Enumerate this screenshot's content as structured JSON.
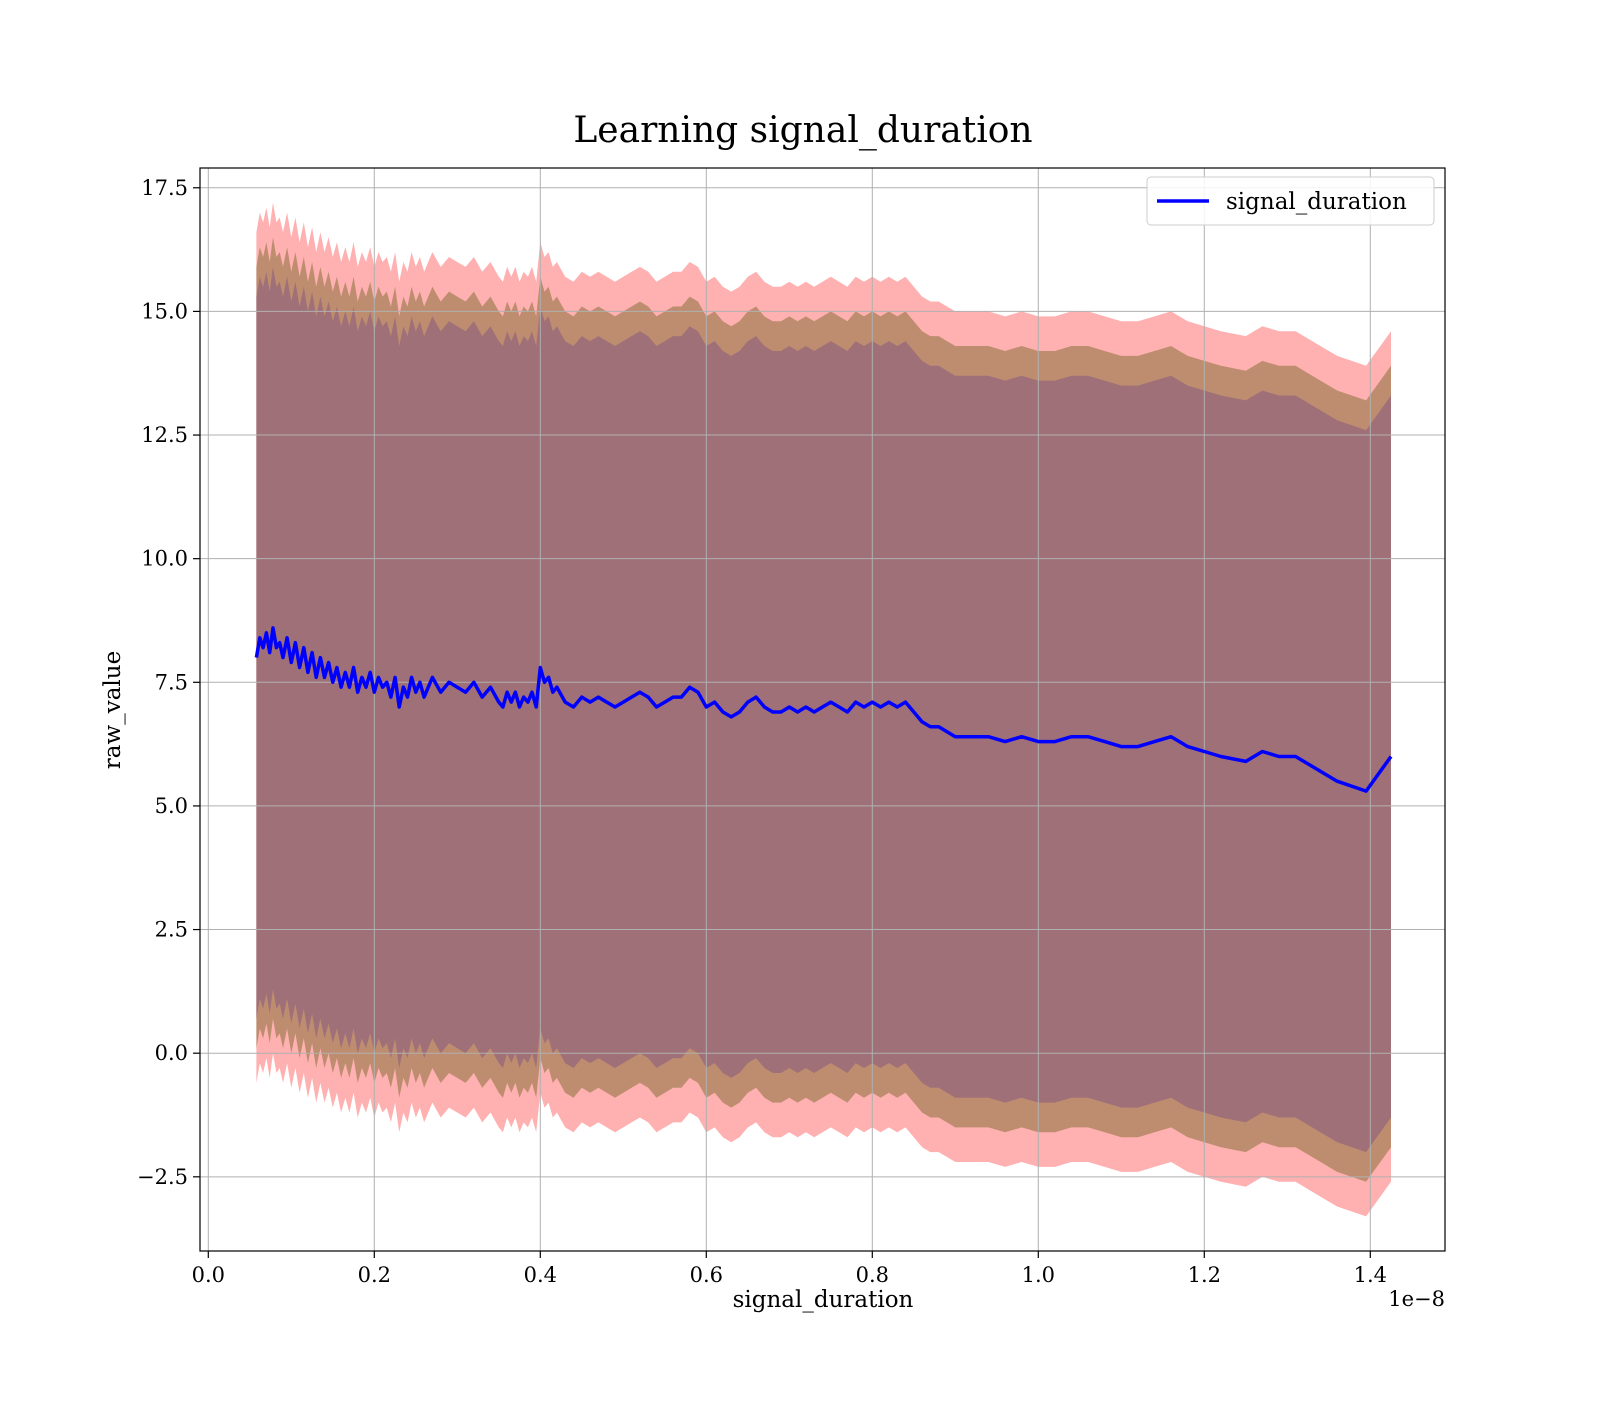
{
  "chart_data": {
    "type": "line",
    "title": "Learning signal_duration",
    "xlabel": "signal_duration",
    "ylabel": "raw_value",
    "x_scale_label": "1e−8",
    "xlim": [
      -0.01,
      1.49
    ],
    "ylim": [
      -4.0,
      17.9
    ],
    "xticks": [
      0.0,
      0.2,
      0.4,
      0.6,
      0.8,
      1.0,
      1.2,
      1.4
    ],
    "xtick_labels": [
      "0.0",
      "0.2",
      "0.4",
      "0.6",
      "0.8",
      "1.0",
      "1.2",
      "1.4"
    ],
    "yticks": [
      -2.5,
      0.0,
      2.5,
      5.0,
      7.5,
      10.0,
      12.5,
      15.0,
      17.5
    ],
    "ytick_labels": [
      "−2.5",
      "0.0",
      "2.5",
      "5.0",
      "7.5",
      "10.0",
      "12.5",
      "15.0",
      "17.5"
    ],
    "grid": true,
    "legend_position": "top-right",
    "colors": {
      "line": "#0000ff",
      "band_outer": "#ff9a9a",
      "band_middle": "#b98a6a",
      "band_inner": "#a07078",
      "grid": "#b0b0b0"
    },
    "band_half_widths": [
      8.6,
      7.9,
      7.3
    ],
    "series": [
      {
        "name": "signal_duration",
        "x": [
          0.058,
          0.062,
          0.066,
          0.07,
          0.074,
          0.078,
          0.082,
          0.086,
          0.09,
          0.095,
          0.1,
          0.105,
          0.11,
          0.115,
          0.12,
          0.125,
          0.13,
          0.135,
          0.14,
          0.145,
          0.15,
          0.155,
          0.16,
          0.165,
          0.17,
          0.175,
          0.18,
          0.185,
          0.19,
          0.195,
          0.2,
          0.205,
          0.21,
          0.215,
          0.22,
          0.225,
          0.23,
          0.235,
          0.24,
          0.245,
          0.25,
          0.255,
          0.26,
          0.27,
          0.28,
          0.29,
          0.3,
          0.31,
          0.32,
          0.33,
          0.34,
          0.35,
          0.355,
          0.36,
          0.365,
          0.37,
          0.375,
          0.38,
          0.385,
          0.39,
          0.395,
          0.4,
          0.405,
          0.41,
          0.415,
          0.42,
          0.43,
          0.44,
          0.45,
          0.46,
          0.47,
          0.48,
          0.49,
          0.5,
          0.51,
          0.52,
          0.53,
          0.54,
          0.55,
          0.56,
          0.57,
          0.58,
          0.59,
          0.6,
          0.61,
          0.62,
          0.63,
          0.64,
          0.65,
          0.66,
          0.67,
          0.68,
          0.69,
          0.7,
          0.71,
          0.72,
          0.73,
          0.74,
          0.75,
          0.76,
          0.77,
          0.78,
          0.79,
          0.8,
          0.81,
          0.82,
          0.83,
          0.84,
          0.85,
          0.86,
          0.87,
          0.88,
          0.89,
          0.9,
          0.92,
          0.94,
          0.96,
          0.98,
          1.0,
          1.02,
          1.04,
          1.06,
          1.08,
          1.1,
          1.12,
          1.14,
          1.16,
          1.17,
          1.18,
          1.2,
          1.22,
          1.25,
          1.27,
          1.29,
          1.31,
          1.33,
          1.36,
          1.395,
          1.425
        ],
        "values": [
          8.0,
          8.4,
          8.2,
          8.5,
          8.1,
          8.6,
          8.2,
          8.3,
          8.0,
          8.4,
          7.9,
          8.3,
          7.8,
          8.2,
          7.7,
          8.1,
          7.6,
          8.0,
          7.6,
          7.9,
          7.5,
          7.8,
          7.4,
          7.7,
          7.4,
          7.8,
          7.3,
          7.6,
          7.4,
          7.7,
          7.3,
          7.6,
          7.4,
          7.5,
          7.2,
          7.6,
          7.0,
          7.4,
          7.2,
          7.6,
          7.3,
          7.5,
          7.2,
          7.6,
          7.3,
          7.5,
          7.4,
          7.3,
          7.5,
          7.2,
          7.4,
          7.1,
          7.0,
          7.3,
          7.1,
          7.3,
          7.0,
          7.2,
          7.1,
          7.3,
          7.0,
          7.8,
          7.5,
          7.6,
          7.3,
          7.4,
          7.1,
          7.0,
          7.2,
          7.1,
          7.2,
          7.1,
          7.0,
          7.1,
          7.2,
          7.3,
          7.2,
          7.0,
          7.1,
          7.2,
          7.2,
          7.4,
          7.3,
          7.0,
          7.1,
          6.9,
          6.8,
          6.9,
          7.1,
          7.2,
          7.0,
          6.9,
          6.9,
          7.0,
          6.9,
          7.0,
          6.9,
          7.0,
          7.1,
          7.0,
          6.9,
          7.1,
          7.0,
          7.1,
          7.0,
          7.1,
          7.0,
          7.1,
          6.9,
          6.7,
          6.6,
          6.6,
          6.5,
          6.4,
          6.4,
          6.4,
          6.3,
          6.4,
          6.3,
          6.3,
          6.4,
          6.4,
          6.3,
          6.2,
          6.2,
          6.3,
          6.4,
          6.3,
          6.2,
          6.1,
          6.0,
          5.9,
          6.1,
          6.0,
          6.0,
          5.8,
          5.5,
          5.3,
          6.0
        ]
      }
    ]
  }
}
